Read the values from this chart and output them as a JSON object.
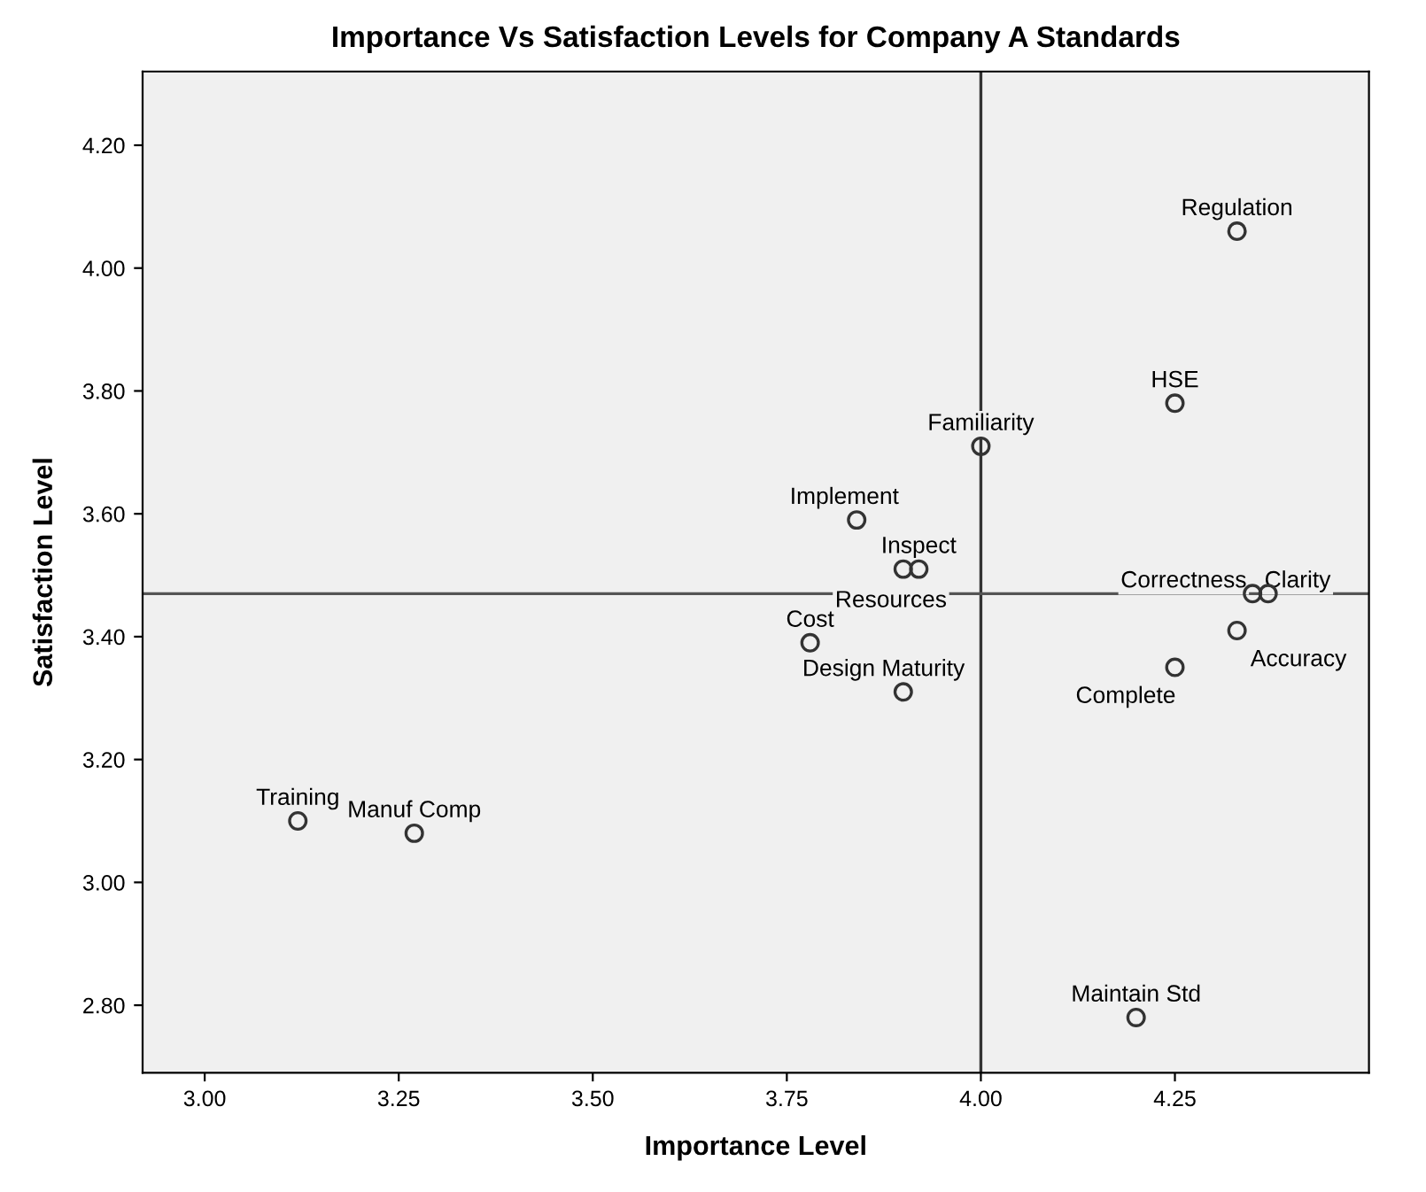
{
  "chart_data": {
    "type": "scatter",
    "title": "Importance Vs Satisfaction Levels for Company A Standards",
    "xlabel": "Importance Level",
    "ylabel": "Satisfaction Level",
    "x": [
      4.33,
      4.25,
      4.0,
      3.84,
      3.92,
      3.9,
      4.35,
      4.37,
      3.78,
      4.33,
      4.25,
      3.9,
      3.12,
      3.27,
      4.2
    ],
    "values": [
      4.06,
      3.78,
      3.71,
      3.59,
      3.51,
      3.51,
      3.47,
      3.47,
      3.39,
      3.41,
      3.35,
      3.31,
      3.1,
      3.08,
      2.78
    ],
    "annotations": [
      {
        "text": "Regulation",
        "x": 4.33,
        "y": 4.06
      },
      {
        "text": "HSE",
        "x": 4.25,
        "y": 3.78
      },
      {
        "text": "Familiarity",
        "x": 4.0,
        "y": 3.71
      },
      {
        "text": "Implement",
        "x": 3.84,
        "y": 3.59
      },
      {
        "text": "Inspect",
        "x": 3.92,
        "y": 3.51
      },
      {
        "text": "Resources",
        "x": 3.9,
        "y": 3.51
      },
      {
        "text": "Correctness",
        "x": 4.35,
        "y": 3.47
      },
      {
        "text": "Clarity",
        "x": 4.37,
        "y": 3.47
      },
      {
        "text": "Cost",
        "x": 3.78,
        "y": 3.39
      },
      {
        "text": "Accuracy",
        "x": 4.33,
        "y": 3.41
      },
      {
        "text": "Complete",
        "x": 4.25,
        "y": 3.35
      },
      {
        "text": "Design Maturity",
        "x": 3.9,
        "y": 3.31
      },
      {
        "text": "Training",
        "x": 3.12,
        "y": 3.1
      },
      {
        "text": "Manuf Comp",
        "x": 3.27,
        "y": 3.08
      },
      {
        "text": "Maintain Std",
        "x": 4.2,
        "y": 2.78
      }
    ],
    "marker": "circle",
    "color": "#333333",
    "xlim": [
      2.92,
      4.5
    ],
    "ylim": [
      2.69,
      4.32
    ],
    "xticks": [
      {
        "value": 3.0,
        "label": "3.00"
      },
      {
        "value": 3.25,
        "label": "3.25"
      },
      {
        "value": 3.5,
        "label": "3.50"
      },
      {
        "value": 3.75,
        "label": "3.75"
      },
      {
        "value": 4.0,
        "label": "4.00"
      },
      {
        "value": 4.25,
        "label": "4.25"
      }
    ],
    "yticks": [
      {
        "value": 2.8,
        "label": "2.80"
      },
      {
        "value": 3.0,
        "label": "3.00"
      },
      {
        "value": 3.2,
        "label": "3.20"
      },
      {
        "value": 3.4,
        "label": "3.40"
      },
      {
        "value": 3.6,
        "label": "3.60"
      },
      {
        "value": 3.8,
        "label": "3.80"
      },
      {
        "value": 4.0,
        "label": "4.00"
      },
      {
        "value": 4.2,
        "label": "4.20"
      }
    ],
    "ref_lines": [
      {
        "axis": "x",
        "value": 4.0,
        "color": "#333333"
      },
      {
        "axis": "y",
        "value": 3.47,
        "color": "#555555"
      }
    ],
    "grid": false,
    "legend": false
  }
}
